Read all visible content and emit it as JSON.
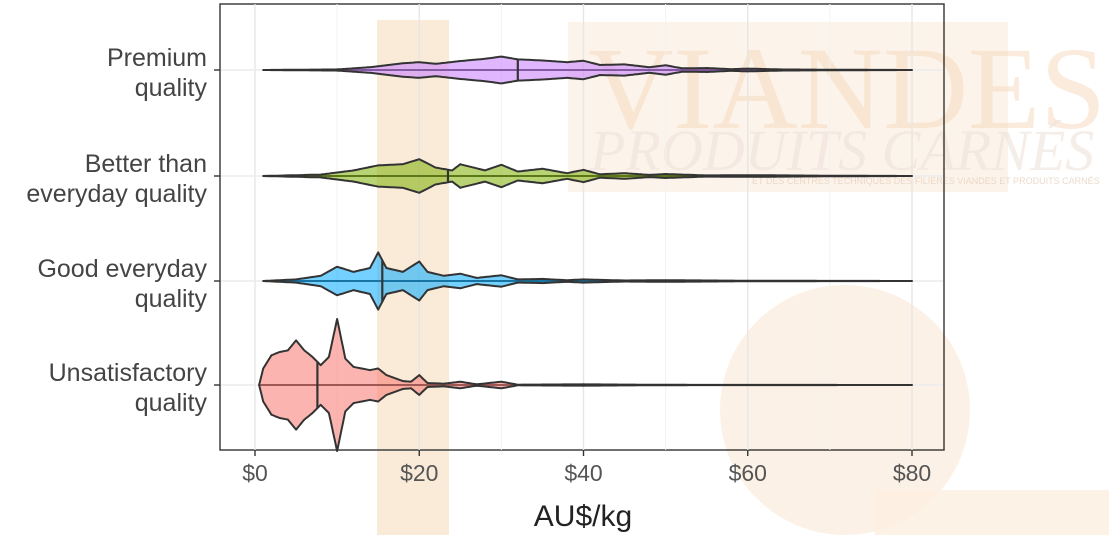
{
  "chart_data": {
    "type": "violin",
    "xlabel": "AU$/kg",
    "x_ticks": [
      "$0",
      "$20",
      "$40",
      "$60",
      "$80"
    ],
    "xlim": [
      0,
      80
    ],
    "grid": true,
    "legend": "none",
    "categories": [
      {
        "label_lines": [
          "Premium",
          "quality"
        ],
        "color": "#c77cff",
        "min": 1,
        "max": 80,
        "median": 32,
        "density": [
          [
            1,
            0
          ],
          [
            10,
            0.02
          ],
          [
            14,
            0.1
          ],
          [
            18,
            0.24
          ],
          [
            20,
            0.28
          ],
          [
            22,
            0.22
          ],
          [
            25,
            0.32
          ],
          [
            28,
            0.4
          ],
          [
            30,
            0.48
          ],
          [
            32,
            0.38
          ],
          [
            35,
            0.34
          ],
          [
            38,
            0.28
          ],
          [
            40,
            0.33
          ],
          [
            42,
            0.18
          ],
          [
            45,
            0.2
          ],
          [
            48,
            0.1
          ],
          [
            50,
            0.17
          ],
          [
            52,
            0.06
          ],
          [
            55,
            0.07
          ],
          [
            58,
            0.03
          ],
          [
            60,
            0.05
          ],
          [
            64,
            0.02
          ],
          [
            70,
            0.01
          ],
          [
            80,
            0
          ]
        ]
      },
      {
        "label_lines": [
          "Better than",
          "everyday quality"
        ],
        "color": "#7cae00",
        "min": 1,
        "max": 80,
        "median": 23.5,
        "density": [
          [
            1,
            0
          ],
          [
            8,
            0.05
          ],
          [
            12,
            0.2
          ],
          [
            15,
            0.38
          ],
          [
            18,
            0.42
          ],
          [
            20,
            0.6
          ],
          [
            22,
            0.3
          ],
          [
            24,
            0.2
          ],
          [
            25,
            0.42
          ],
          [
            28,
            0.2
          ],
          [
            30,
            0.4
          ],
          [
            32,
            0.16
          ],
          [
            35,
            0.26
          ],
          [
            38,
            0.1
          ],
          [
            40,
            0.22
          ],
          [
            42,
            0.06
          ],
          [
            45,
            0.1
          ],
          [
            48,
            0.04
          ],
          [
            50,
            0.07
          ],
          [
            55,
            0.02
          ],
          [
            60,
            0.03
          ],
          [
            70,
            0.01
          ],
          [
            80,
            0
          ]
        ]
      },
      {
        "label_lines": [
          "Good everyday",
          "quality"
        ],
        "color": "#00a9ff",
        "min": 1,
        "max": 80,
        "median": 15.5,
        "density": [
          [
            1,
            0
          ],
          [
            5,
            0.06
          ],
          [
            8,
            0.2
          ],
          [
            10,
            0.55
          ],
          [
            12,
            0.35
          ],
          [
            14,
            0.5
          ],
          [
            15,
            1.1
          ],
          [
            16,
            0.5
          ],
          [
            18,
            0.35
          ],
          [
            20,
            0.75
          ],
          [
            21,
            0.35
          ],
          [
            23,
            0.2
          ],
          [
            25,
            0.28
          ],
          [
            27,
            0.12
          ],
          [
            30,
            0.22
          ],
          [
            32,
            0.06
          ],
          [
            35,
            0.08
          ],
          [
            38,
            0.03
          ],
          [
            40,
            0.06
          ],
          [
            45,
            0.02
          ],
          [
            50,
            0.03
          ],
          [
            60,
            0.01
          ],
          [
            80,
            0
          ]
        ]
      },
      {
        "label_lines": [
          "Unsatisfactory",
          "quality"
        ],
        "color": "#f8766d",
        "min": 0.5,
        "max": 80,
        "median": 7.6,
        "density": [
          [
            0.5,
            0
          ],
          [
            1,
            0.5
          ],
          [
            2,
            0.9
          ],
          [
            3,
            1.0
          ],
          [
            4,
            1.05
          ],
          [
            5,
            1.35
          ],
          [
            6,
            1.05
          ],
          [
            7,
            0.85
          ],
          [
            8,
            0.6
          ],
          [
            9,
            0.85
          ],
          [
            10,
            2.0
          ],
          [
            11,
            0.8
          ],
          [
            12,
            0.55
          ],
          [
            14,
            0.45
          ],
          [
            15,
            0.5
          ],
          [
            16,
            0.3
          ],
          [
            18,
            0.12
          ],
          [
            19,
            0.1
          ],
          [
            20,
            0.3
          ],
          [
            21,
            0.06
          ],
          [
            23,
            0.04
          ],
          [
            25,
            0.1
          ],
          [
            27,
            0.02
          ],
          [
            30,
            0.1
          ],
          [
            32,
            0.01
          ],
          [
            40,
            0.02
          ],
          [
            50,
            0.005
          ],
          [
            80,
            0
          ]
        ]
      }
    ]
  },
  "watermark": {
    "line1": "VIANDES&",
    "line2": "PRODUITS CARNÉS",
    "line3": "ET DES CENTRES TECHNIQUES DES FILIÈRES VIANDES ET PRODUITS CARNÉS"
  }
}
